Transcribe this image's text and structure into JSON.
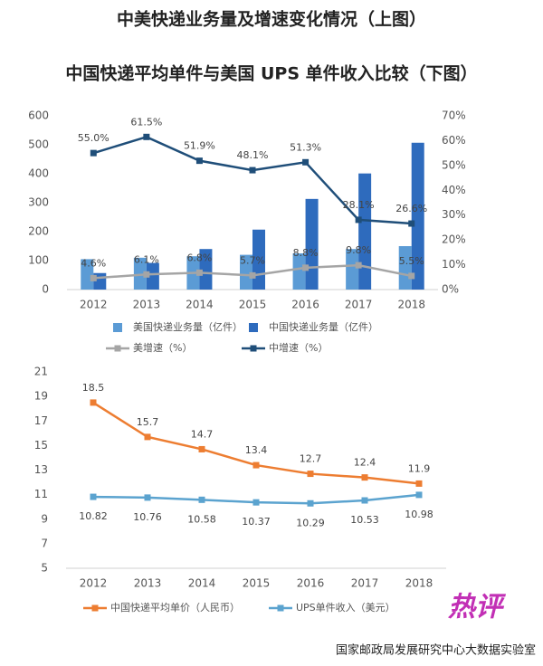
{
  "header": {
    "title": "中美快递业务量及增速变化情况（上图）",
    "subtitle": "中国快递平均单件与美国 UPS 单件收入比较（下图）"
  },
  "chart_data": [
    {
      "type": "combo",
      "categories": [
        "2012",
        "2013",
        "2014",
        "2015",
        "2016",
        "2017",
        "2018"
      ],
      "ylim": [
        0,
        600
      ],
      "yticks": [
        0,
        100,
        200,
        300,
        400,
        500,
        600
      ],
      "y2lim": [
        0,
        70
      ],
      "y2ticks": [
        {
          "value": 0,
          "label": "0%"
        },
        {
          "value": 10,
          "label": "10%"
        },
        {
          "value": 20,
          "label": "20%"
        },
        {
          "value": 30,
          "label": "30%"
        },
        {
          "value": 40,
          "label": "40%"
        },
        {
          "value": 50,
          "label": "50%"
        },
        {
          "value": 60,
          "label": "60%"
        },
        {
          "value": 70,
          "label": "70%"
        }
      ],
      "series": [
        {
          "name": "美国快递业务量（亿件）",
          "type": "bar",
          "color": "#5b9bd5",
          "values": [
            105,
            110,
            115,
            120,
            125,
            140,
            150
          ]
        },
        {
          "name": "中国快递业务量（亿件）",
          "type": "bar",
          "color": "#2e6bbd",
          "values": [
            57,
            92,
            140,
            207,
            313,
            401,
            507
          ]
        },
        {
          "name": "美增速（%）",
          "type": "line",
          "axis": "y2",
          "color": "#a5a5a5",
          "values": [
            4.6,
            6.1,
            6.8,
            5.7,
            8.8,
            9.8,
            5.5
          ],
          "value_labels": [
            "4.6%",
            "6.1%",
            "6.8%",
            "5.7%",
            "8.8%",
            "9.8%",
            "5.5%"
          ]
        },
        {
          "name": "中增速（%）",
          "type": "line",
          "axis": "y2",
          "color": "#1f4e79",
          "values": [
            55.0,
            61.5,
            51.9,
            48.1,
            51.3,
            28.1,
            26.6
          ],
          "value_labels": [
            "55.0%",
            "61.5%",
            "51.9%",
            "48.1%",
            "51.3%",
            "28.1%",
            "26.6%"
          ]
        }
      ]
    },
    {
      "type": "line",
      "categories": [
        "2012",
        "2013",
        "2014",
        "2015",
        "2016",
        "2017",
        "2018"
      ],
      "ylim": [
        5,
        21
      ],
      "yticks": [
        5,
        7,
        9,
        11,
        13,
        15,
        17,
        19,
        21
      ],
      "series": [
        {
          "name": "中国快递平均单价（人民币）",
          "color": "#ed7d31",
          "values": [
            18.5,
            15.7,
            14.7,
            13.4,
            12.7,
            12.4,
            11.9
          ]
        },
        {
          "name": "UPS单件收入（美元）",
          "color": "#5ba3cf",
          "values": [
            10.82,
            10.76,
            10.58,
            10.37,
            10.29,
            10.53,
            10.98
          ]
        }
      ]
    }
  ],
  "badge": "热评",
  "source": "国家邮政局发展研究中心大数据实验室"
}
